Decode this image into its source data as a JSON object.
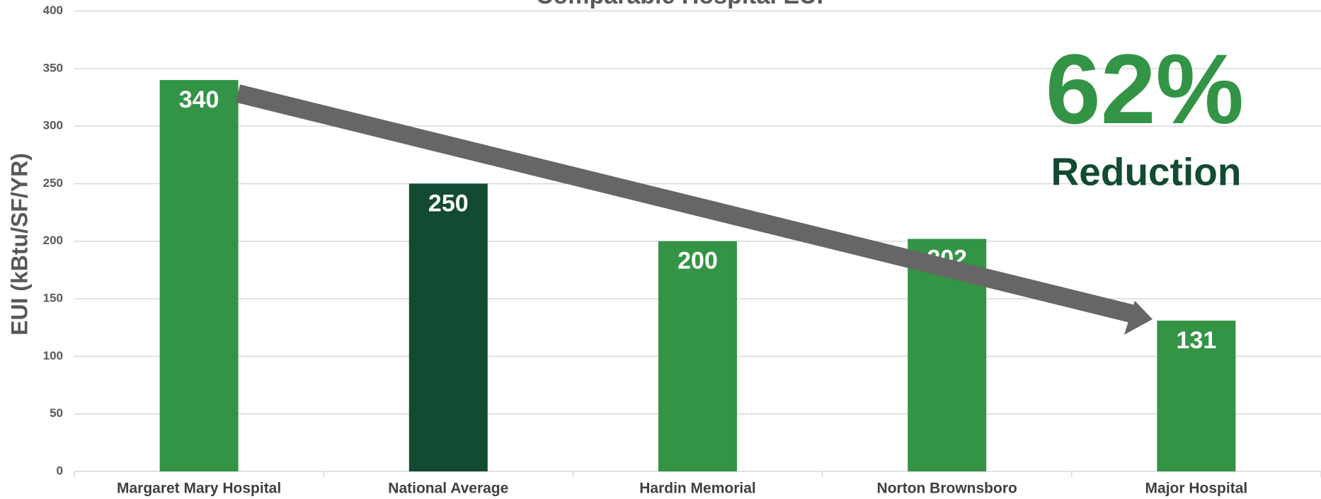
{
  "chart_data": {
    "type": "bar",
    "title": "Comparable Hospital EUI",
    "y_label": "EUI  (kBtu/SF/YR)",
    "categories": [
      "Margaret Mary Hospital",
      "National Average",
      "Hardin Memorial",
      "Norton Brownsboro",
      "Major Hospital"
    ],
    "values": [
      340,
      250,
      200,
      202,
      131
    ],
    "colors": [
      "#339445",
      "#134a32",
      "#339445",
      "#339445",
      "#339445"
    ],
    "ylim": [
      0,
      400
    ],
    "yticks": [
      0,
      50,
      100,
      150,
      200,
      250,
      300,
      350,
      400
    ],
    "grid": true,
    "annotations": [
      "62%",
      "Reduction"
    ]
  }
}
